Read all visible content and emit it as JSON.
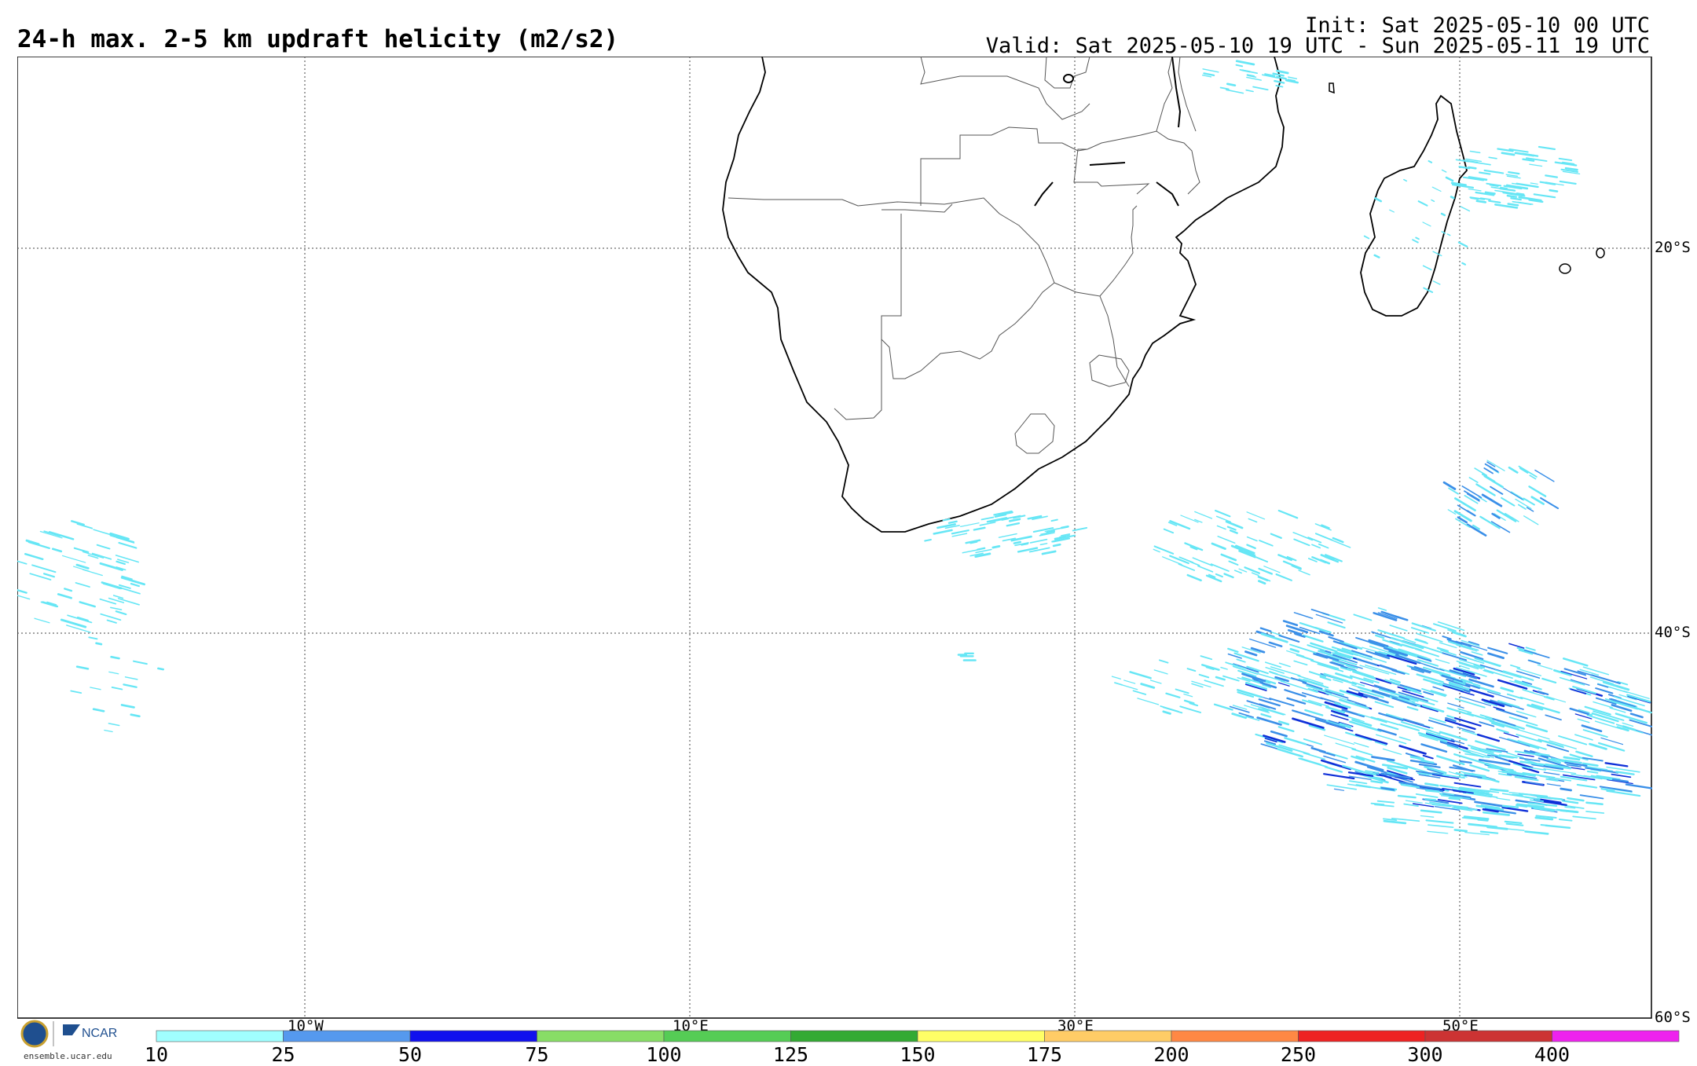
{
  "title": "24-h max. 2-5 km updraft helicity (m2/s2)",
  "init_line": "Init: Sat 2025-05-10 00 UTC",
  "valid_line": "Valid: Sat 2025-05-10 19 UTC - Sun 2025-05-11 19 UTC",
  "lon_ticks": [
    "10°W",
    "10°E",
    "30°E",
    "50°E"
  ],
  "lat_ticks": [
    "20°S",
    "40°S",
    "60°S"
  ],
  "colorbar": {
    "labels": [
      "10",
      "25",
      "50",
      "75",
      "100",
      "125",
      "150",
      "175",
      "200",
      "250",
      "300",
      "400"
    ],
    "colors": [
      "#a0ffff",
      "#5599ee",
      "#1111ee",
      "#88dd66",
      "#55cc55",
      "#33aa33",
      "#ffff66",
      "#ffcc66",
      "#ff8844",
      "#ee2222",
      "#cc3333",
      "#ee22ee"
    ]
  },
  "logo": {
    "org": "NCAR",
    "url": "ensemble.ucar.edu"
  },
  "uh_colors": {
    "light": "#66e6f5",
    "medium": "#3a8fe8",
    "dark": "#1030d8"
  }
}
